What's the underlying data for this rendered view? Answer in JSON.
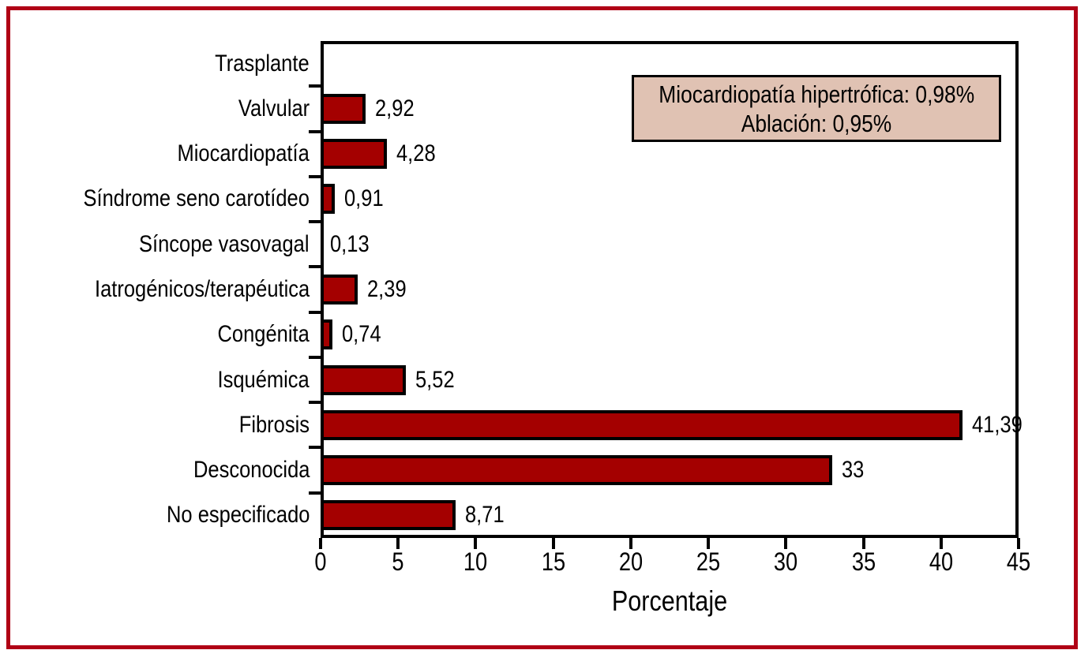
{
  "page": {
    "background": "#ffffff",
    "frame_color": "#b00015"
  },
  "chart_data": {
    "type": "bar",
    "orientation": "horizontal",
    "title": "",
    "xlabel": "Porcentaje",
    "ylabel": "",
    "xlim": [
      0,
      45
    ],
    "xticks": [
      0,
      5,
      10,
      15,
      20,
      25,
      30,
      35,
      40,
      45
    ],
    "xtick_labels": [
      "0",
      "5",
      "10",
      "15",
      "20",
      "25",
      "30",
      "35",
      "40",
      "45"
    ],
    "grid": false,
    "categories": [
      "Trasplante",
      "Valvular",
      "Miocardiopatía",
      "Síndrome seno carotídeo",
      "Síncope vasovagal",
      "Iatrogénicos/terapéutica",
      "Congénita",
      "Isquémica",
      "Fibrosis",
      "Desconocida",
      "No especificado"
    ],
    "values": [
      0,
      2.92,
      4.28,
      0.91,
      0.13,
      2.39,
      0.74,
      5.52,
      41.39,
      33,
      8.71
    ],
    "value_labels": [
      "",
      "2,92",
      "4,28",
      "0,91",
      "0,13",
      "2,39",
      "0,74",
      "5,52",
      "41,39",
      "33",
      "8,71"
    ],
    "bar_color": "#a40000",
    "bar_border_color": "#000000",
    "axis_color": "#000000",
    "annotation": {
      "lines": [
        "Miocardiopatía hipertrófica: 0,98%",
        "Ablación: 0,95%"
      ],
      "bg_color": "#e0c2b3",
      "border_color": "#000000"
    }
  }
}
